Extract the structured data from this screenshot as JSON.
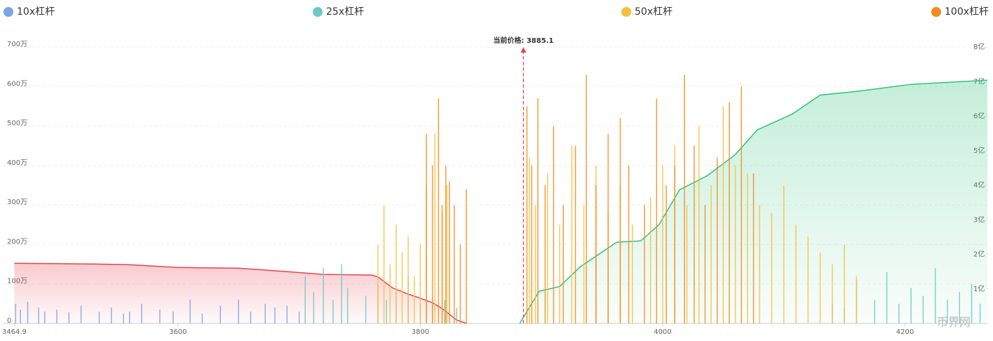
{
  "chart_data": {
    "type": "bar",
    "xlim": [
      3456,
      4268
    ],
    "xticks": [
      3464.9,
      3600,
      3800,
      4000,
      4200
    ],
    "ylim": [
      0,
      7000000
    ],
    "yticks": [
      0,
      {
        "value": 1000000,
        "label": "100万"
      },
      {
        "value": 2000000,
        "label": "200万"
      },
      {
        "value": 3000000,
        "label": "300万"
      },
      {
        "value": 4000000,
        "label": "400万"
      },
      {
        "value": 5000000,
        "label": "500万"
      },
      {
        "value": 6000000,
        "label": "600万"
      },
      {
        "value": 7000000,
        "label": "700万"
      }
    ],
    "y2lim": [
      0,
      800000000
    ],
    "y2ticks": [
      {
        "value": 100000000,
        "label": "1亿"
      },
      {
        "value": 200000000,
        "label": "2亿"
      },
      {
        "value": 300000000,
        "label": "3亿"
      },
      {
        "value": 400000000,
        "label": "4亿"
      },
      {
        "value": 500000000,
        "label": "5亿"
      },
      {
        "value": 600000000,
        "label": "6亿"
      },
      {
        "value": 700000000,
        "label": "7亿"
      },
      {
        "value": 800000000,
        "label": "8亿"
      }
    ],
    "grid": true,
    "annotation": {
      "value": 3885.1,
      "label": "当前价格: 3885.1",
      "color": "#e8434f"
    },
    "watermark": "币界网",
    "series": [
      {
        "name": "10x杠杆",
        "type": "bar",
        "color": "#7ba3eb",
        "x": [
          3466,
          3470,
          3476,
          3485,
          3490,
          3500,
          3510,
          3520,
          3535,
          3545,
          3555,
          3560,
          3570,
          3585,
          3596,
          3610,
          3620,
          3635,
          3650,
          3660,
          3672,
          3680,
          3690,
          3700
        ],
        "values": [
          500000,
          350000,
          550000,
          400000,
          300000,
          350000,
          280000,
          450000,
          300000,
          400000,
          250000,
          300000,
          500000,
          350000,
          300000,
          600000,
          250000,
          450000,
          600000,
          300000,
          500000,
          400000,
          450000,
          300000
        ]
      },
      {
        "name": "25x杠杆",
        "type": "bar",
        "color": "#6ccac5",
        "x": [
          3705,
          3712,
          3720,
          3728,
          3735,
          3740,
          3755,
          3765,
          3772,
          3780,
          3790,
          3800,
          3810,
          3820,
          3830,
          4140,
          4150,
          4160,
          4175,
          4185,
          4195,
          4205,
          4215,
          4225,
          4235,
          4245,
          4255,
          4262
        ],
        "values": [
          1200000,
          800000,
          1400000,
          600000,
          1500000,
          900000,
          700000,
          1000000,
          600000,
          800000,
          1200000,
          500000,
          700000,
          600000,
          400000,
          500000,
          400000,
          1100000,
          600000,
          1300000,
          500000,
          900000,
          700000,
          1400000,
          600000,
          800000,
          1000000,
          500000
        ]
      },
      {
        "name": "50x杠杆",
        "type": "bar",
        "color": "#f7bf3c",
        "x": [
          3765,
          3770,
          3775,
          3780,
          3785,
          3790,
          3795,
          3800,
          3805,
          3812,
          3818,
          3822,
          3890,
          3895,
          3905,
          3915,
          3925,
          3935,
          3945,
          3955,
          3965,
          3975,
          3990,
          4000,
          4010,
          4020,
          4030,
          4040,
          4050,
          4060,
          4070,
          4080,
          4090,
          4100,
          4110,
          4120,
          4130,
          4140,
          4150,
          4160
        ],
        "values": [
          2000000,
          3000000,
          1500000,
          2500000,
          1800000,
          2200000,
          1200000,
          2000000,
          3500000,
          4800000,
          2800000,
          3500000,
          4200000,
          3000000,
          3800000,
          2500000,
          4500000,
          3000000,
          4000000,
          2800000,
          3500000,
          2500000,
          3200000,
          4000000,
          4500000,
          3000000,
          5000000,
          3500000,
          5500000,
          4000000,
          3800000,
          3000000,
          2800000,
          3500000,
          2500000,
          2200000,
          1800000,
          1500000,
          2000000,
          1200000
        ]
      },
      {
        "name": "100x杠杆",
        "type": "bar",
        "color": "#f68a1a",
        "x": [
          3805,
          3810,
          3815,
          3818,
          3821,
          3824,
          3828,
          3833,
          3838,
          3888,
          3892,
          3897,
          3903,
          3910,
          3918,
          3928,
          3937,
          3945,
          3955,
          3965,
          3972,
          3985,
          3995,
          4003,
          4010,
          4018,
          4026,
          4035,
          4045,
          4055,
          4065,
          4075
        ],
        "values": [
          4800000,
          4000000,
          5700000,
          3000000,
          4000000,
          3600000,
          3000000,
          2000000,
          3400000,
          5500000,
          4000000,
          5700000,
          3500000,
          5000000,
          3000000,
          4500000,
          6300000,
          3500000,
          4800000,
          5200000,
          4000000,
          3000000,
          5700000,
          3500000,
          4000000,
          6300000,
          4500000,
          3000000,
          4200000,
          5600000,
          6000000,
          3800000
        ]
      },
      {
        "type": "area",
        "axis": "y2",
        "color": "#e8434f",
        "x": [
          3464.9,
          3500,
          3530,
          3560,
          3600,
          3650,
          3690,
          3720,
          3760,
          3765,
          3777,
          3790,
          3800,
          3810,
          3818,
          3830,
          3838
        ],
        "values": [
          174000000,
          173000000,
          172000000,
          170000000,
          162000000,
          160000000,
          150000000,
          142000000,
          140000000,
          135000000,
          103000000,
          85000000,
          73000000,
          60000000,
          43000000,
          10000000,
          0
        ]
      },
      {
        "type": "area",
        "axis": "y2",
        "color": "#2fc27a",
        "x": [
          3882,
          3898,
          3915,
          3932,
          3962,
          3982,
          3997,
          4014,
          4037,
          4060,
          4078,
          4107,
          4130,
          4159,
          4205,
          4268
        ],
        "values": [
          0,
          93000000,
          107000000,
          164000000,
          235000000,
          239000000,
          286000000,
          387000000,
          428000000,
          489000000,
          560000000,
          606000000,
          661000000,
          671000000,
          692000000,
          704000000
        ]
      }
    ]
  }
}
